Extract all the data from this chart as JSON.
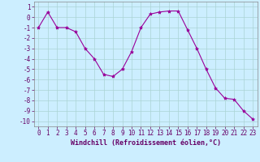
{
  "x": [
    0,
    1,
    2,
    3,
    4,
    5,
    6,
    7,
    8,
    9,
    10,
    11,
    12,
    13,
    14,
    15,
    16,
    17,
    18,
    19,
    20,
    21,
    22,
    23
  ],
  "y": [
    -1.0,
    0.5,
    -1.0,
    -1.0,
    -1.4,
    -3.0,
    -4.0,
    -5.5,
    -5.7,
    -5.0,
    -3.3,
    -1.0,
    0.3,
    0.5,
    0.6,
    0.6,
    -1.2,
    -3.0,
    -5.0,
    -6.8,
    -7.8,
    -7.9,
    -9.0,
    -9.8
  ],
  "line_color": "#990099",
  "marker": "*",
  "marker_size": 3,
  "bg_color": "#cceeff",
  "grid_color": "#aad4d4",
  "xlabel": "Windchill (Refroidissement éolien,°C)",
  "ylim": [
    -10.5,
    1.5
  ],
  "xlim": [
    -0.5,
    23.5
  ],
  "yticks": [
    1,
    0,
    -1,
    -2,
    -3,
    -4,
    -5,
    -6,
    -7,
    -8,
    -9,
    -10
  ],
  "xticks": [
    0,
    1,
    2,
    3,
    4,
    5,
    6,
    7,
    8,
    9,
    10,
    11,
    12,
    13,
    14,
    15,
    16,
    17,
    18,
    19,
    20,
    21,
    22,
    23
  ],
  "label_fontsize": 6,
  "tick_fontsize": 5.5
}
